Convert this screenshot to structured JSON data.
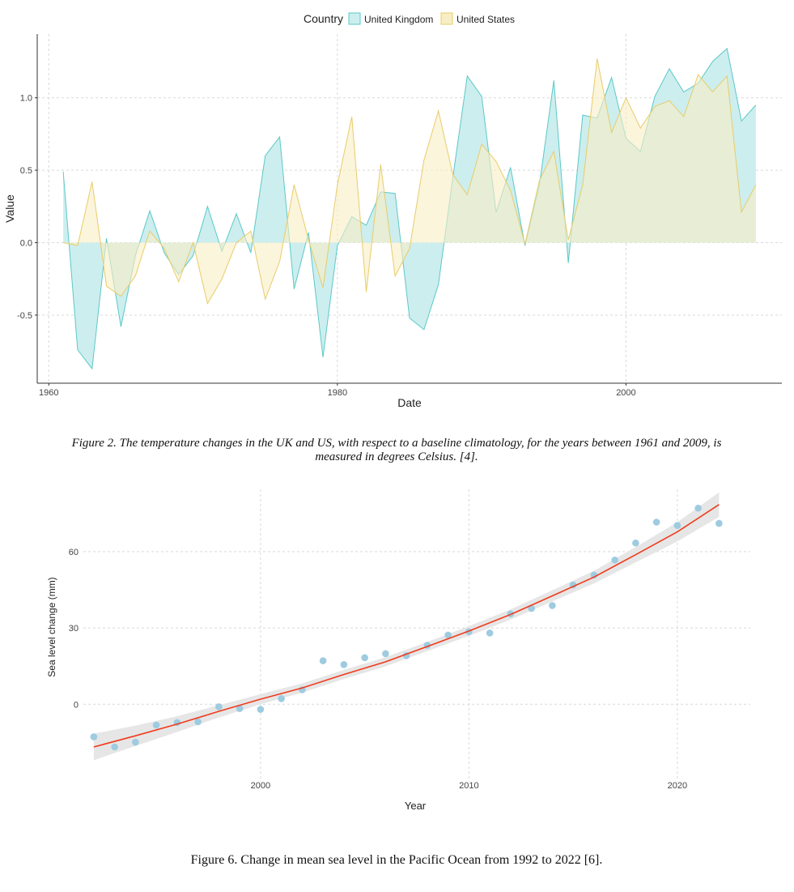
{
  "figure1": {
    "caption": "Figure 2. The temperature changes in the UK and US, with respect to a baseline climatology, for the years between 1961 and 2009, is measured in degrees Celsius. [4]."
  },
  "figure2": {
    "caption": "Figure 6. Change in mean sea level in the Pacific Ocean from 1992 to 2022 [6]."
  },
  "chart_data": [
    {
      "type": "area",
      "title": "",
      "xlabel": "Date",
      "ylabel": "Value",
      "legend_title": "Country",
      "legend_position": "top",
      "grid": true,
      "xlim": [
        1959.2,
        2010.8
      ],
      "ylim": [
        -0.97,
        1.44
      ],
      "x_ticks": [
        "1960",
        "1980",
        "2000"
      ],
      "y_ticks": [
        "-0.5",
        "0.0",
        "0.5",
        "1.0"
      ],
      "x": [
        1961,
        1962,
        1963,
        1964,
        1965,
        1966,
        1967,
        1968,
        1969,
        1970,
        1971,
        1972,
        1973,
        1974,
        1975,
        1976,
        1977,
        1978,
        1979,
        1980,
        1981,
        1982,
        1983,
        1984,
        1985,
        1986,
        1987,
        1988,
        1989,
        1990,
        1991,
        1992,
        1993,
        1994,
        1995,
        1996,
        1997,
        1998,
        1999,
        2000,
        2001,
        2002,
        2003,
        2004,
        2005,
        2006,
        2007,
        2008,
        2009
      ],
      "series": [
        {
          "name": "United Kingdom",
          "color": "#5bc8c8",
          "fill": "#cdeeee",
          "values": [
            0.49,
            -0.74,
            -0.87,
            0.03,
            -0.58,
            -0.09,
            0.22,
            -0.07,
            -0.22,
            -0.09,
            0.25,
            -0.06,
            0.2,
            -0.07,
            0.6,
            0.73,
            -0.32,
            0.07,
            -0.79,
            -0.02,
            0.18,
            0.12,
            0.35,
            0.34,
            -0.52,
            -0.6,
            -0.29,
            0.45,
            1.15,
            1.01,
            0.21,
            0.52,
            -0.02,
            0.4,
            1.12,
            -0.14,
            0.88,
            0.86,
            1.14,
            0.72,
            0.63,
            1.01,
            1.2,
            1.04,
            1.1,
            1.25,
            1.34,
            0.84,
            0.95
          ]
        },
        {
          "name": "United States",
          "color": "#e8cc6a",
          "fill": "#f8eec5",
          "values": [
            0.0,
            -0.02,
            0.42,
            -0.3,
            -0.37,
            -0.23,
            0.08,
            -0.04,
            -0.27,
            0.0,
            -0.42,
            -0.25,
            0.0,
            0.08,
            -0.39,
            -0.13,
            0.4,
            0.02,
            -0.31,
            0.4,
            0.87,
            -0.34,
            0.54,
            -0.23,
            -0.04,
            0.57,
            0.91,
            0.47,
            0.33,
            0.68,
            0.56,
            0.36,
            -0.01,
            0.43,
            0.63,
            0.02,
            0.4,
            1.27,
            0.76,
            1.0,
            0.79,
            0.94,
            0.98,
            0.87,
            1.16,
            1.04,
            1.15,
            0.21,
            0.4
          ]
        }
      ]
    },
    {
      "type": "scatter",
      "title": "",
      "xlabel": "Year",
      "ylabel": "Sea level change (mm)",
      "legend": false,
      "grid": true,
      "xlim": [
        1991.5,
        2023.5
      ],
      "ylim": [
        -30.5,
        84.5
      ],
      "x_ticks": [
        "2000",
        "2010",
        "2020"
      ],
      "y_ticks": [
        "0",
        "30",
        "60"
      ],
      "point_color": "#9ecbe0",
      "trend_color": "#ef3b1c",
      "band_color": "#e6e6e6",
      "x": [
        1992,
        1993,
        1994,
        1995,
        1996,
        1997,
        1998,
        1999,
        2000,
        2001,
        2002,
        2003,
        2004,
        2005,
        2006,
        2007,
        2008,
        2009,
        2010,
        2011,
        2012,
        2013,
        2014,
        2015,
        2016,
        2017,
        2018,
        2019,
        2020,
        2021,
        2022
      ],
      "values": [
        -12.8,
        -16.8,
        -14.9,
        -8.2,
        -7.2,
        -6.9,
        -1.0,
        -1.7,
        -2.0,
        2.2,
        5.7,
        17.1,
        15.6,
        18.3,
        19.9,
        19.1,
        23.2,
        27.2,
        28.5,
        28.0,
        35.5,
        37.7,
        38.8,
        46.9,
        50.8,
        56.7,
        63.4,
        71.6,
        70.3,
        77.1,
        71.1
      ],
      "trend": {
        "x": [
          1992,
          1994,
          1996,
          1998,
          2000,
          2002,
          2004,
          2006,
          2008,
          2010,
          2012,
          2014,
          2016,
          2018,
          2020,
          2022
        ],
        "y": [
          -16.8,
          -12.4,
          -7.8,
          -2.8,
          2.0,
          6.4,
          11.7,
          16.7,
          22.7,
          28.8,
          35.3,
          42.6,
          50.0,
          58.8,
          67.8,
          78.5
        ],
        "band_half_width": [
          5.2,
          4.0,
          3.1,
          2.4,
          2.0,
          1.8,
          1.8,
          1.8,
          1.8,
          1.9,
          2.0,
          2.2,
          2.5,
          3.0,
          3.8,
          4.8
        ]
      }
    }
  ]
}
